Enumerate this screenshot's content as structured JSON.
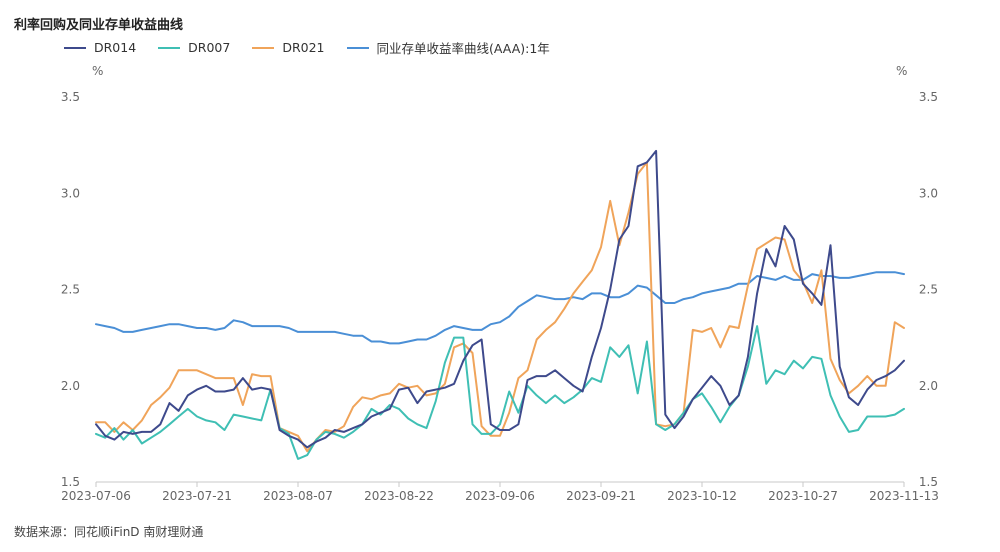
{
  "title": "利率回购及同业存单收益曲线",
  "source": "数据来源：同花顺iFinD 南财理财通",
  "unit_left": "%",
  "unit_right": "%",
  "chart_data": {
    "type": "line",
    "title": "利率回购及同业存单收益曲线",
    "ylim": [
      1.5,
      3.5
    ],
    "yticks": [
      "1.5",
      "2.0",
      "2.5",
      "3.0",
      "3.5"
    ],
    "x_tick_labels": [
      "2023-07-06",
      "2023-07-21",
      "2023-08-07",
      "2023-08-22",
      "2023-09-06",
      "2023-09-21",
      "2023-10-12",
      "2023-10-27",
      "2023-11-13"
    ],
    "x_tick_positions": [
      0,
      11,
      22,
      33,
      44,
      55,
      66,
      77,
      88
    ],
    "grid": false,
    "legend_position": "top-left",
    "series": [
      {
        "name": "DR014",
        "color": "#3e4a8c",
        "values": [
          1.8,
          1.74,
          1.72,
          1.76,
          1.75,
          1.76,
          1.76,
          1.8,
          1.91,
          1.87,
          1.95,
          1.98,
          2.0,
          1.97,
          1.97,
          1.98,
          2.04,
          1.98,
          1.99,
          1.98,
          1.77,
          1.74,
          1.72,
          1.68,
          1.71,
          1.73,
          1.77,
          1.76,
          1.78,
          1.8,
          1.84,
          1.86,
          1.88,
          1.98,
          1.99,
          1.91,
          1.97,
          1.98,
          1.99,
          2.01,
          2.13,
          2.21,
          2.24,
          1.8,
          1.77,
          1.77,
          1.8,
          2.03,
          2.05,
          2.05,
          2.08,
          2.04,
          2.0,
          1.97,
          2.15,
          2.3,
          2.5,
          2.76,
          2.83,
          3.14,
          3.16,
          3.22,
          1.85,
          1.78,
          1.84,
          1.93,
          1.99,
          2.05,
          2.0,
          1.9,
          1.95,
          2.15,
          2.48,
          2.71,
          2.62,
          2.83,
          2.76,
          2.53,
          2.48,
          2.42,
          2.73,
          2.1,
          1.94,
          1.9,
          1.98,
          2.03,
          2.05,
          2.08,
          2.13
        ]
      },
      {
        "name": "DR007",
        "color": "#3fbfb4",
        "values": [
          1.75,
          1.73,
          1.78,
          1.72,
          1.77,
          1.7,
          1.73,
          1.76,
          1.8,
          1.84,
          1.88,
          1.84,
          1.82,
          1.81,
          1.77,
          1.85,
          1.84,
          1.83,
          1.82,
          1.98,
          1.78,
          1.75,
          1.62,
          1.64,
          1.72,
          1.76,
          1.75,
          1.73,
          1.76,
          1.8,
          1.88,
          1.85,
          1.9,
          1.88,
          1.83,
          1.8,
          1.78,
          1.92,
          2.12,
          2.25,
          2.25,
          1.8,
          1.75,
          1.75,
          1.8,
          1.97,
          1.86,
          2.0,
          1.95,
          1.91,
          1.95,
          1.91,
          1.94,
          1.98,
          2.04,
          2.02,
          2.2,
          2.15,
          2.21,
          1.96,
          2.23,
          1.8,
          1.77,
          1.8,
          1.86,
          1.93,
          1.96,
          1.89,
          1.81,
          1.89,
          1.95,
          2.1,
          2.31,
          2.01,
          2.08,
          2.06,
          2.13,
          2.09,
          2.15,
          2.14,
          1.95,
          1.84,
          1.76,
          1.77,
          1.84,
          1.84,
          1.84,
          1.85,
          1.88
        ]
      },
      {
        "name": "DR021",
        "color": "#f0a45a",
        "values": [
          1.81,
          1.81,
          1.76,
          1.81,
          1.77,
          1.82,
          1.9,
          1.94,
          1.99,
          2.08,
          2.08,
          2.08,
          2.06,
          2.04,
          2.04,
          2.04,
          1.9,
          2.06,
          2.05,
          2.05,
          1.78,
          1.76,
          1.74,
          1.66,
          1.72,
          1.77,
          1.76,
          1.79,
          1.89,
          1.94,
          1.93,
          1.95,
          1.96,
          2.01,
          1.99,
          2.0,
          1.95,
          1.96,
          2.01,
          2.2,
          2.22,
          2.17,
          1.79,
          1.74,
          1.74,
          1.86,
          2.04,
          2.08,
          2.24,
          2.29,
          2.33,
          2.4,
          2.48,
          2.54,
          2.6,
          2.72,
          2.96,
          2.73,
          2.9,
          3.1,
          3.16,
          1.8,
          1.79,
          1.8,
          1.86,
          2.29,
          2.28,
          2.3,
          2.2,
          2.31,
          2.3,
          2.52,
          2.71,
          2.74,
          2.77,
          2.76,
          2.6,
          2.54,
          2.43,
          2.6,
          2.14,
          2.03,
          1.96,
          2.0,
          2.05,
          2.0,
          2.0,
          2.33,
          2.3
        ]
      },
      {
        "name": "同业存单收益率曲线(AAA):1年",
        "color": "#4a8fd6",
        "values": [
          2.32,
          2.31,
          2.3,
          2.28,
          2.28,
          2.29,
          2.3,
          2.31,
          2.32,
          2.32,
          2.31,
          2.3,
          2.3,
          2.29,
          2.3,
          2.34,
          2.33,
          2.31,
          2.31,
          2.31,
          2.31,
          2.3,
          2.28,
          2.28,
          2.28,
          2.28,
          2.28,
          2.27,
          2.26,
          2.26,
          2.23,
          2.23,
          2.22,
          2.22,
          2.23,
          2.24,
          2.24,
          2.26,
          2.29,
          2.31,
          2.3,
          2.29,
          2.29,
          2.32,
          2.33,
          2.36,
          2.41,
          2.44,
          2.47,
          2.46,
          2.45,
          2.45,
          2.46,
          2.45,
          2.48,
          2.48,
          2.46,
          2.46,
          2.48,
          2.52,
          2.51,
          2.47,
          2.43,
          2.43,
          2.45,
          2.46,
          2.48,
          2.49,
          2.5,
          2.51,
          2.53,
          2.53,
          2.57,
          2.56,
          2.55,
          2.57,
          2.55,
          2.55,
          2.58,
          2.57,
          2.57,
          2.56,
          2.56,
          2.57,
          2.58,
          2.59,
          2.59,
          2.59,
          2.58
        ]
      }
    ]
  }
}
